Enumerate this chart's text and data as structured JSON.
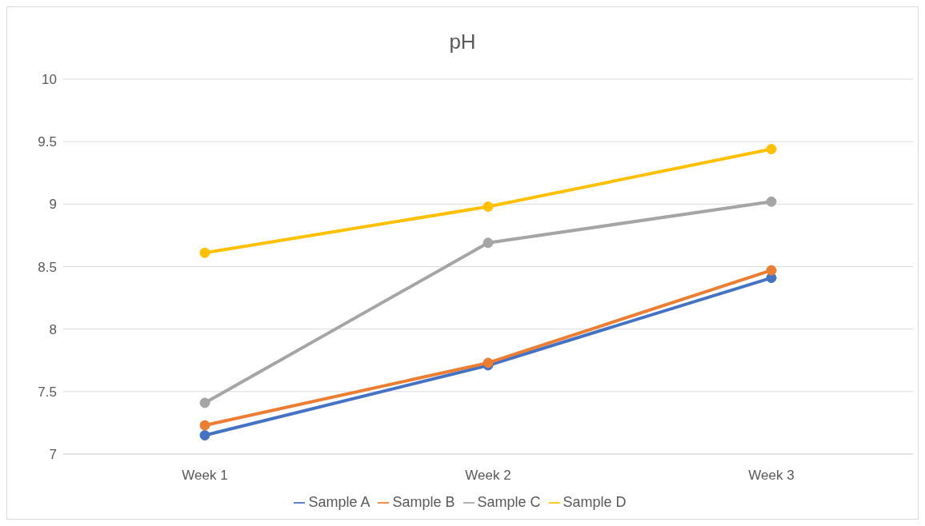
{
  "chart_data": {
    "type": "line",
    "title": "pH",
    "categories": [
      "Week 1",
      "Week 2",
      "Week 3"
    ],
    "series": [
      {
        "name": "Sample A",
        "color": "#4472c4",
        "values": [
          7.15,
          7.71,
          8.41
        ]
      },
      {
        "name": "Sample B",
        "color": "#ed7d31",
        "values": [
          7.23,
          7.73,
          8.47
        ]
      },
      {
        "name": "Sample C",
        "color": "#a5a5a5",
        "values": [
          7.41,
          8.69,
          9.02
        ]
      },
      {
        "name": "Sample D",
        "color": "#ffc000",
        "values": [
          8.61,
          8.98,
          9.44
        ]
      }
    ],
    "ylim": [
      7,
      10
    ],
    "yticks": [
      7,
      7.5,
      8,
      8.5,
      9,
      9.5,
      10
    ],
    "grid": "y",
    "legend": "bottom",
    "marker": "circle",
    "line_style": "solid"
  }
}
